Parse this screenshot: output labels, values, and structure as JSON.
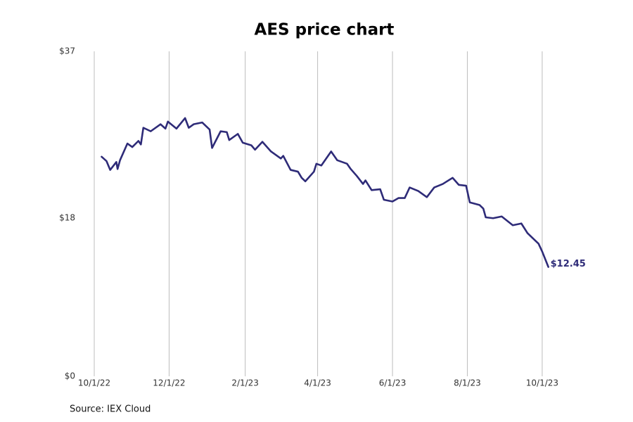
{
  "chart_data": {
    "type": "line",
    "title": "AES price chart",
    "x": [
      "10/7/22",
      "10/11/22",
      "10/14/22",
      "10/19/22",
      "10/20/22",
      "10/22/22",
      "10/28/22",
      "11/1/22",
      "11/6/22",
      "11/8/22",
      "11/10/22",
      "11/16/22",
      "11/24/22",
      "11/28/22",
      "11/30/22",
      "12/7/22",
      "12/14/22",
      "12/17/22",
      "12/21/22",
      "12/28/22",
      "1/3/23",
      "1/5/23",
      "1/12/23",
      "1/17/23",
      "1/19/23",
      "1/26/23",
      "1/30/23",
      "2/6/23",
      "2/9/23",
      "2/15/23",
      "2/22/23",
      "3/2/23",
      "3/4/23",
      "3/10/23",
      "3/16/23",
      "3/19/23",
      "3/22/23",
      "3/29/23",
      "3/31/23",
      "4/4/23",
      "4/12/23",
      "4/17/23",
      "4/25/23",
      "4/28/23",
      "5/3/23",
      "5/8/23",
      "5/10/23",
      "5/15/23",
      "5/22/23",
      "5/25/23",
      "6/1/23",
      "6/6/23",
      "6/11/23",
      "6/15/23",
      "6/22/23",
      "6/29/23",
      "7/5/23",
      "7/12/23",
      "7/20/23",
      "7/25/23",
      "7/31/23",
      "8/3/23",
      "8/11/23",
      "8/14/23",
      "8/16/23",
      "8/22/23",
      "8/29/23",
      "9/7/23",
      "9/14/23",
      "9/19/23",
      "9/28/23",
      "10/1/23",
      "10/6/23"
    ],
    "values": [
      25.0,
      24.5,
      23.5,
      24.4,
      23.6,
      24.6,
      26.5,
      26.1,
      26.8,
      26.4,
      28.3,
      27.9,
      28.7,
      28.2,
      29.0,
      28.2,
      29.4,
      28.3,
      28.7,
      28.9,
      28.1,
      26.0,
      27.9,
      27.8,
      26.9,
      27.6,
      26.6,
      26.3,
      25.8,
      26.7,
      25.6,
      24.8,
      25.1,
      23.5,
      23.3,
      22.6,
      22.2,
      23.3,
      24.2,
      24.0,
      25.6,
      24.6,
      24.2,
      23.6,
      22.8,
      21.9,
      22.3,
      21.2,
      21.3,
      20.1,
      19.9,
      20.3,
      20.3,
      21.5,
      21.1,
      20.4,
      21.5,
      21.9,
      22.6,
      21.8,
      21.7,
      19.8,
      19.5,
      19.1,
      18.1,
      18.0,
      18.2,
      17.2,
      17.4,
      16.3,
      15.1,
      14.2,
      12.45
    ],
    "value_labels": [
      null,
      null,
      null,
      null,
      null,
      null,
      null,
      null,
      null,
      null,
      null,
      null,
      null,
      null,
      null,
      null,
      null,
      null,
      null,
      null,
      null,
      null,
      null,
      null,
      null,
      null,
      null,
      null,
      null,
      null,
      null,
      null,
      null,
      null,
      null,
      null,
      null,
      null,
      null,
      null,
      null,
      null,
      null,
      null,
      null,
      null,
      null,
      null,
      null,
      null,
      null,
      null,
      null,
      null,
      null,
      null,
      null,
      null,
      null,
      null,
      null,
      null,
      null,
      null,
      null,
      null,
      null,
      null,
      null,
      null,
      null,
      null,
      "$12.45"
    ],
    "color": "#2e2b78",
    "xlim": [
      "10/1/22",
      "11/1/23"
    ],
    "xticks": [
      "10/1/22",
      "12/1/22",
      "2/1/23",
      "4/1/23",
      "6/1/23",
      "8/1/23",
      "10/1/23"
    ],
    "ylim": [
      0,
      37
    ],
    "yticks": [
      {
        "value": 0,
        "label": "$0"
      },
      {
        "value": 18,
        "label": "$18"
      },
      {
        "value": 37,
        "label": "$37"
      }
    ],
    "grid": "x",
    "source": "Source: IEX Cloud"
  }
}
